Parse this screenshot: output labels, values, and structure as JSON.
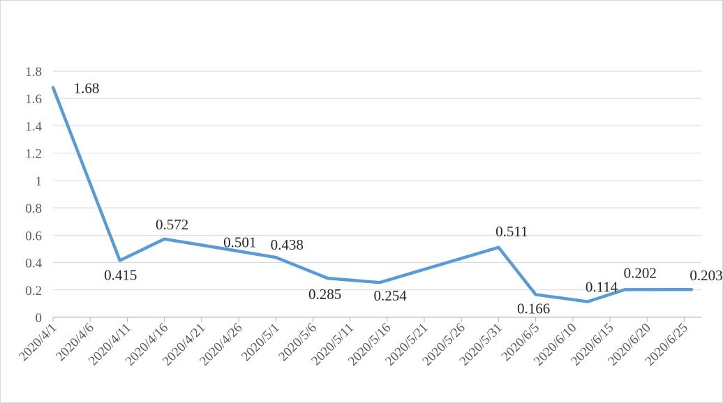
{
  "chart_data": {
    "type": "line",
    "title": "",
    "xlabel": "",
    "ylabel": "",
    "x_ticks": [
      "2020/4/1",
      "2020/4/6",
      "2020/4/11",
      "2020/4/16",
      "2020/4/21",
      "2020/4/26",
      "2020/5/1",
      "2020/5/6",
      "2020/5/11",
      "2020/5/16",
      "2020/5/21",
      "2020/5/26",
      "2020/5/31",
      "2020/6/5",
      "2020/6/10",
      "2020/6/15",
      "2020/6/20",
      "2020/6/25"
    ],
    "y_ticks": [
      "0",
      "0.2",
      "0.4",
      "0.6",
      "0.8",
      "1",
      "1.2",
      "1.4",
      "1.6",
      "1.8"
    ],
    "ylim": [
      0,
      1.8
    ],
    "xlim": [
      "2020/4/1",
      "2020/6/26"
    ],
    "grid": true,
    "legend": "none",
    "series": [
      {
        "color": "#5b9bd5",
        "points": [
          {
            "x": "2020/4/1",
            "y": 1.68,
            "label": "1.68"
          },
          {
            "x": "2020/4/10",
            "y": 0.415,
            "label": "0.415"
          },
          {
            "x": "2020/4/16",
            "y": 0.572,
            "label": "0.572"
          },
          {
            "x": "2020/4/24",
            "y": 0.501,
            "label": "0.501"
          },
          {
            "x": "2020/5/1",
            "y": 0.438,
            "label": "0.438"
          },
          {
            "x": "2020/5/8",
            "y": 0.285,
            "label": "0.285"
          },
          {
            "x": "2020/5/15",
            "y": 0.254,
            "label": "0.254"
          },
          {
            "x": "2020/5/31",
            "y": 0.511,
            "label": "0.511"
          },
          {
            "x": "2020/6/5",
            "y": 0.166,
            "label": "0.166"
          },
          {
            "x": "2020/6/12",
            "y": 0.114,
            "label": "0.114"
          },
          {
            "x": "2020/6/17",
            "y": 0.202,
            "label": "0.202"
          },
          {
            "x": "2020/6/26",
            "y": 0.203,
            "label": "0.203"
          }
        ]
      }
    ]
  }
}
